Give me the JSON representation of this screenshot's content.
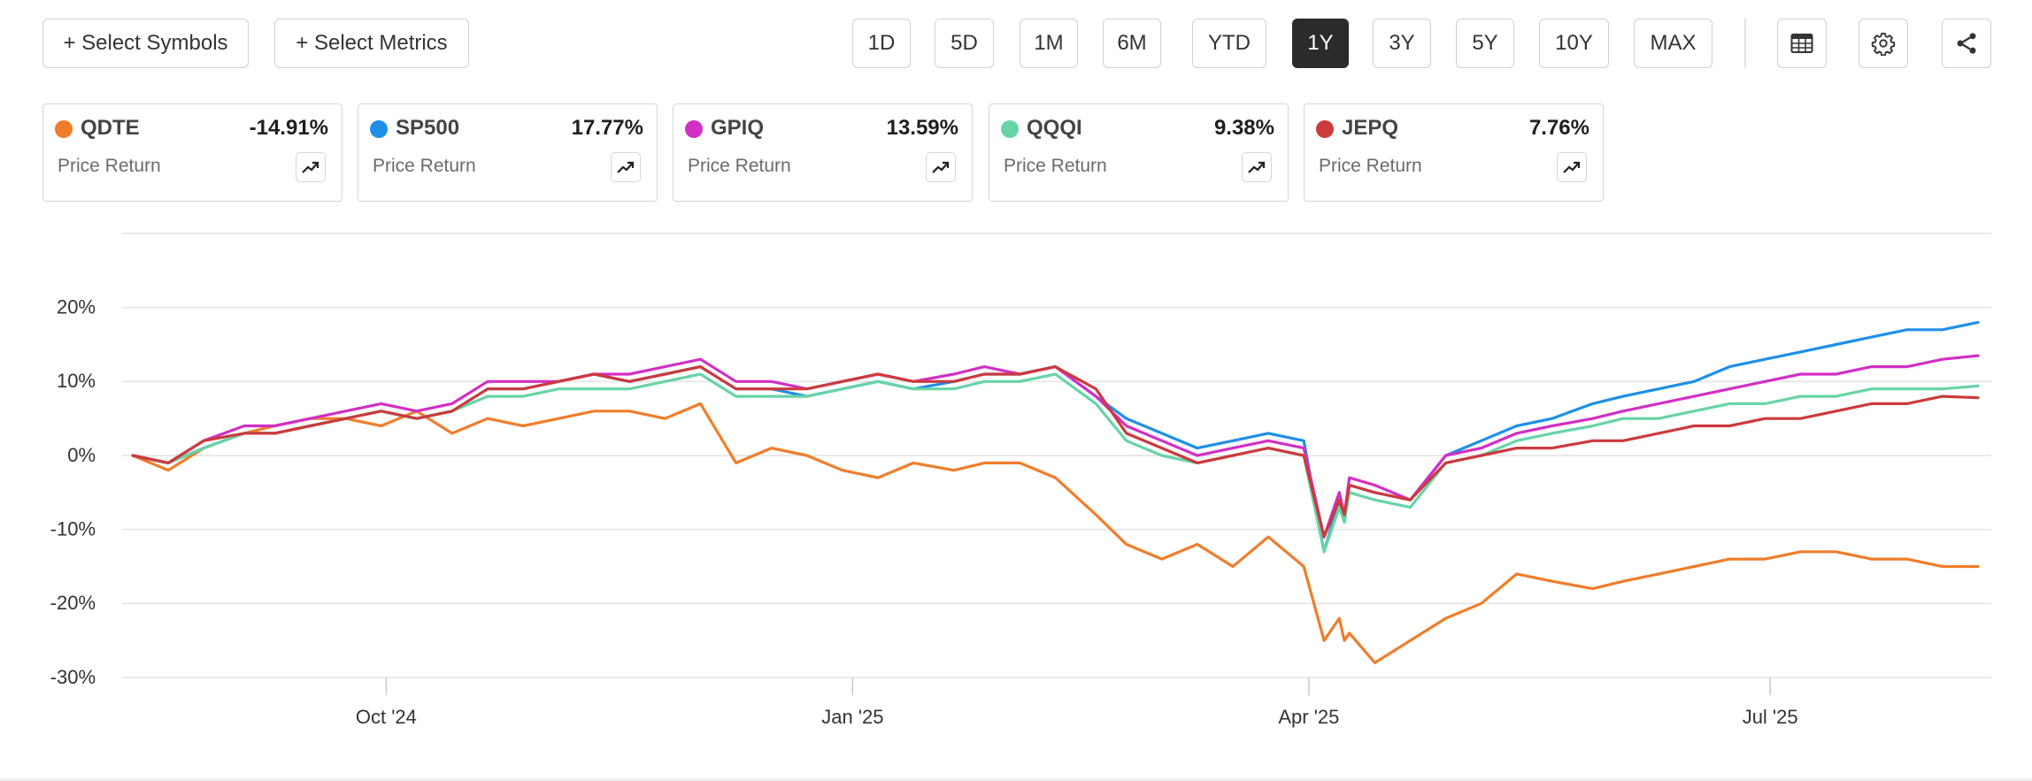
{
  "toolbar": {
    "select_symbols": "+ Select Symbols",
    "select_metrics": "+ Select Metrics",
    "ranges": [
      "1D",
      "5D",
      "1M",
      "6M",
      "YTD",
      "1Y",
      "3Y",
      "5Y",
      "10Y",
      "MAX"
    ],
    "active_range": "1Y",
    "icons": [
      "table-icon",
      "gear-icon",
      "share-icon"
    ]
  },
  "cards": [
    {
      "symbol": "QDTE",
      "value": "-14.91%",
      "metric": "Price Return",
      "color": "#f07d2b"
    },
    {
      "symbol": "SP500",
      "value": "17.77%",
      "metric": "Price Return",
      "color": "#1e8fe8"
    },
    {
      "symbol": "GPIQ",
      "value": "13.59%",
      "metric": "Price Return",
      "color": "#d22fc4"
    },
    {
      "symbol": "QQQI",
      "value": "9.38%",
      "metric": "Price Return",
      "color": "#67d4a6"
    },
    {
      "symbol": "JEPQ",
      "value": "7.76%",
      "metric": "Price Return",
      "color": "#cc3a3c"
    }
  ],
  "chart_data": {
    "type": "line",
    "title": "",
    "xlabel": "",
    "ylabel": "",
    "x_ticks": [
      "Oct '24",
      "Jan '25",
      "Apr '25",
      "Jul '25"
    ],
    "y_ticks": [
      "20%",
      "10%",
      "0%",
      "-10%",
      "-20%",
      "-30%"
    ],
    "ylim": [
      -30,
      30
    ],
    "grid": true,
    "x": [
      "2024-08-12",
      "2024-08-19",
      "2024-08-26",
      "2024-09-03",
      "2024-09-09",
      "2024-09-16",
      "2024-09-23",
      "2024-09-30",
      "2024-10-07",
      "2024-10-14",
      "2024-10-21",
      "2024-10-28",
      "2024-11-04",
      "2024-11-11",
      "2024-11-18",
      "2024-11-25",
      "2024-12-02",
      "2024-12-09",
      "2024-12-16",
      "2024-12-23",
      "2024-12-30",
      "2025-01-06",
      "2025-01-13",
      "2025-01-21",
      "2025-01-27",
      "2025-02-03",
      "2025-02-10",
      "2025-02-18",
      "2025-02-24",
      "2025-03-03",
      "2025-03-10",
      "2025-03-17",
      "2025-03-24",
      "2025-03-31",
      "2025-04-04",
      "2025-04-07",
      "2025-04-08",
      "2025-04-09",
      "2025-04-14",
      "2025-04-21",
      "2025-04-28",
      "2025-05-05",
      "2025-05-12",
      "2025-05-19",
      "2025-05-27",
      "2025-06-02",
      "2025-06-09",
      "2025-06-16",
      "2025-06-23",
      "2025-06-30",
      "2025-07-07",
      "2025-07-14",
      "2025-07-21",
      "2025-07-28",
      "2025-08-04",
      "2025-08-11"
    ],
    "series": [
      {
        "name": "QDTE",
        "color": "#f07d2b",
        "values": [
          0,
          -2,
          1,
          3,
          4,
          5,
          5,
          4,
          6,
          3,
          5,
          4,
          5,
          6,
          6,
          5,
          7,
          -1,
          1,
          0,
          -2,
          -3,
          -1,
          -2,
          -1,
          -1,
          -3,
          -8,
          -12,
          -14,
          -12,
          -15,
          -11,
          -15,
          -25,
          -22,
          -25,
          -24,
          -28,
          -25,
          -22,
          -20,
          -16,
          -17,
          -18,
          -17,
          -16,
          -15,
          -14,
          -14,
          -13,
          -13,
          -14,
          -14,
          -15,
          -15
        ]
      },
      {
        "name": "SP500",
        "color": "#1e8fe8",
        "values": [
          0,
          -1,
          1,
          3,
          3,
          4,
          5,
          6,
          5,
          6,
          9,
          9,
          10,
          11,
          10,
          11,
          12,
          9,
          9,
          8,
          9,
          10,
          9,
          10,
          11,
          11,
          12,
          8,
          5,
          3,
          1,
          2,
          3,
          2,
          -13,
          -6,
          -9,
          -4,
          -5,
          -6,
          0,
          2,
          4,
          5,
          7,
          8,
          9,
          10,
          12,
          13,
          14,
          15,
          16,
          17,
          17,
          18
        ]
      },
      {
        "name": "GPIQ",
        "color": "#d22fc4",
        "values": [
          0,
          -1,
          2,
          4,
          4,
          5,
          6,
          7,
          6,
          7,
          10,
          10,
          10,
          11,
          11,
          12,
          13,
          10,
          10,
          9,
          10,
          11,
          10,
          11,
          12,
          11,
          12,
          8,
          4,
          2,
          0,
          1,
          2,
          1,
          -11,
          -5,
          -8,
          -3,
          -4,
          -6,
          0,
          1,
          3,
          4,
          5,
          6,
          7,
          8,
          9,
          10,
          11,
          11,
          12,
          12,
          13,
          13.5
        ]
      },
      {
        "name": "QQQI",
        "color": "#67d4a6",
        "values": [
          0,
          -1,
          1,
          3,
          3,
          4,
          5,
          6,
          5,
          6,
          8,
          8,
          9,
          9,
          9,
          10,
          11,
          8,
          8,
          8,
          9,
          10,
          9,
          9,
          10,
          10,
          11,
          7,
          2,
          0,
          -1,
          0,
          1,
          0,
          -13,
          -7,
          -9,
          -5,
          -6,
          -7,
          -1,
          0,
          2,
          3,
          4,
          5,
          5,
          6,
          7,
          7,
          8,
          8,
          9,
          9,
          9,
          9.4
        ]
      },
      {
        "name": "JEPQ",
        "color": "#cc3a3c",
        "values": [
          0,
          -1,
          2,
          3,
          3,
          4,
          5,
          6,
          5,
          6,
          9,
          9,
          10,
          11,
          10,
          11,
          12,
          9,
          9,
          9,
          10,
          11,
          10,
          10,
          11,
          11,
          12,
          9,
          3,
          1,
          -1,
          0,
          1,
          0,
          -11,
          -6,
          -8,
          -4,
          -5,
          -6,
          -1,
          0,
          1,
          1,
          2,
          2,
          3,
          4,
          4,
          5,
          5,
          6,
          7,
          7,
          8,
          7.8
        ]
      }
    ]
  }
}
